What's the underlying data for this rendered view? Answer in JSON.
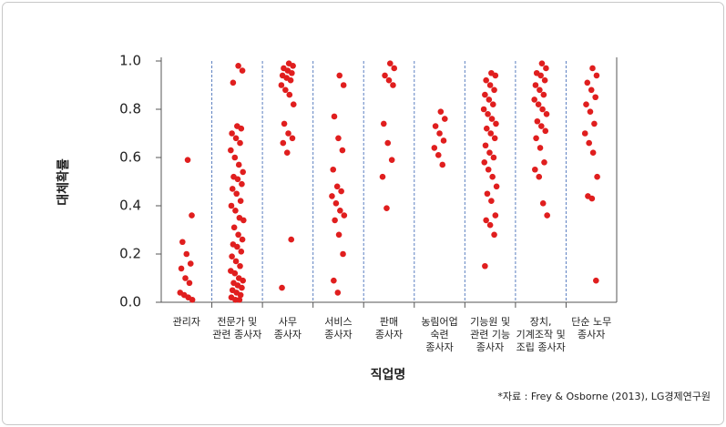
{
  "chart_data": {
    "type": "strip",
    "y_label": "대체확률",
    "x_label": "직업명",
    "source": "*자료 : Frey & Osborne (2013), LG경제연구원",
    "color": "#e01e1e",
    "ylim": [
      0,
      1
    ],
    "yticks": [
      {
        "value": 0,
        "label": "0.0"
      },
      0.2,
      0.4,
      0.6,
      0.8,
      {
        "value": 1,
        "label": "1.0"
      }
    ],
    "categories": [
      [
        "관리자"
      ],
      [
        "전문가 및",
        "관련 종사자"
      ],
      [
        "사무",
        "종사자"
      ],
      [
        "서비스",
        "종사자"
      ],
      [
        "판매",
        "종사자"
      ],
      [
        "농림어업",
        "숙련",
        "종사자"
      ],
      [
        "기능원 및",
        "관련 기능",
        "종사자"
      ],
      [
        "장치,",
        "기계조작 및",
        "조립 종사자"
      ],
      [
        "단순 노무",
        "종사자"
      ]
    ],
    "values": [
      [
        0.59,
        0.36,
        0.25,
        0.2,
        0.16,
        0.14,
        0.1,
        0.08,
        0.04,
        0.03,
        0.02,
        0.01
      ],
      [
        0.98,
        0.96,
        0.91,
        0.73,
        0.72,
        0.7,
        0.68,
        0.66,
        0.63,
        0.6,
        0.57,
        0.54,
        0.52,
        0.51,
        0.49,
        0.47,
        0.45,
        0.42,
        0.4,
        0.38,
        0.35,
        0.34,
        0.31,
        0.28,
        0.26,
        0.24,
        0.23,
        0.21,
        0.19,
        0.17,
        0.15,
        0.13,
        0.12,
        0.1,
        0.09,
        0.08,
        0.07,
        0.06,
        0.05,
        0.04,
        0.03,
        0.02,
        0.01,
        0.01
      ],
      [
        0.99,
        0.98,
        0.97,
        0.96,
        0.95,
        0.94,
        0.93,
        0.92,
        0.9,
        0.88,
        0.86,
        0.82,
        0.74,
        0.7,
        0.68,
        0.66,
        0.62,
        0.26,
        0.06
      ],
      [
        0.94,
        0.9,
        0.77,
        0.68,
        0.63,
        0.55,
        0.48,
        0.46,
        0.44,
        0.41,
        0.38,
        0.36,
        0.34,
        0.28,
        0.2,
        0.09,
        0.04
      ],
      [
        0.99,
        0.97,
        0.94,
        0.92,
        0.9,
        0.74,
        0.66,
        0.59,
        0.52,
        0.39
      ],
      [
        0.79,
        0.76,
        0.73,
        0.7,
        0.67,
        0.64,
        0.61,
        0.57
      ],
      [
        0.95,
        0.94,
        0.92,
        0.9,
        0.88,
        0.86,
        0.84,
        0.82,
        0.8,
        0.78,
        0.76,
        0.74,
        0.72,
        0.7,
        0.68,
        0.65,
        0.62,
        0.6,
        0.58,
        0.55,
        0.52,
        0.48,
        0.45,
        0.42,
        0.36,
        0.34,
        0.32,
        0.28,
        0.15
      ],
      [
        0.99,
        0.97,
        0.95,
        0.94,
        0.92,
        0.9,
        0.88,
        0.86,
        0.84,
        0.82,
        0.8,
        0.78,
        0.75,
        0.73,
        0.71,
        0.68,
        0.64,
        0.58,
        0.55,
        0.52,
        0.41,
        0.36
      ],
      [
        0.97,
        0.94,
        0.91,
        0.88,
        0.85,
        0.82,
        0.79,
        0.74,
        0.7,
        0.66,
        0.62,
        0.52,
        0.44,
        0.43,
        0.09
      ]
    ]
  }
}
